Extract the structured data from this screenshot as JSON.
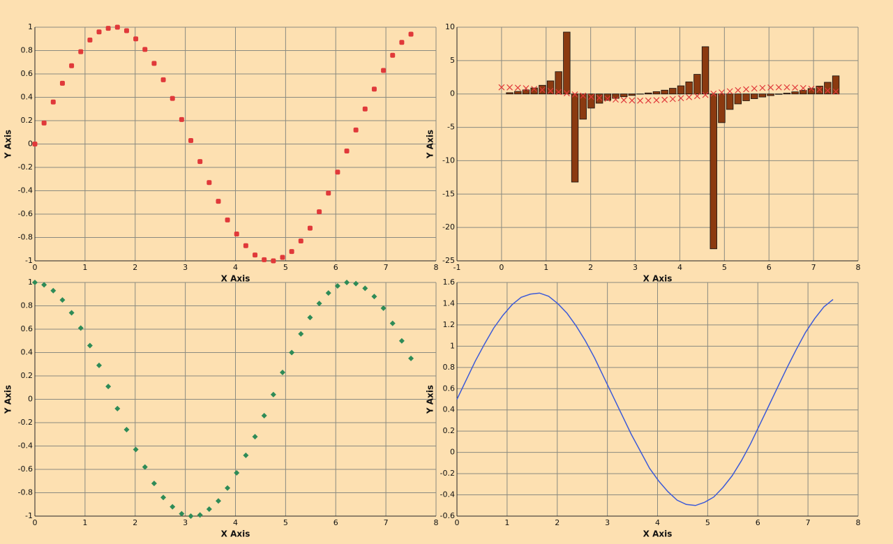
{
  "chart_data": [
    {
      "type": "scatter",
      "xlabel": "X Axis",
      "ylabel": "Y Axis",
      "xlim": [
        0,
        8
      ],
      "xticks": [
        0,
        1,
        2,
        3,
        4,
        5,
        6,
        7,
        8
      ],
      "ylim": [
        -1,
        1
      ],
      "yticks": [
        -1,
        -0.8,
        -0.6,
        -0.4,
        -0.2,
        0,
        0.2,
        0.4,
        0.6,
        0.8,
        1
      ],
      "grid": true,
      "x": [
        0,
        0.183,
        0.366,
        0.549,
        0.732,
        0.915,
        1.098,
        1.28,
        1.463,
        1.646,
        1.829,
        2.012,
        2.195,
        2.378,
        2.561,
        2.744,
        2.927,
        3.11,
        3.293,
        3.476,
        3.659,
        3.841,
        4.024,
        4.207,
        4.39,
        4.573,
        4.756,
        4.939,
        5.122,
        5.305,
        5.488,
        5.671,
        5.854,
        6.037,
        6.22,
        6.402,
        6.585,
        6.768,
        6.951,
        7.134,
        7.317,
        7.5
      ],
      "series": [
        {
          "color": "#e0393a",
          "marker": "square",
          "values": [
            0,
            0.18,
            0.36,
            0.52,
            0.67,
            0.79,
            0.89,
            0.96,
            0.99,
            1.0,
            0.97,
            0.9,
            0.81,
            0.69,
            0.55,
            0.39,
            0.21,
            0.03,
            -0.15,
            -0.33,
            -0.49,
            -0.65,
            -0.77,
            -0.87,
            -0.95,
            -0.99,
            -1.0,
            -0.97,
            -0.92,
            -0.83,
            -0.72,
            -0.58,
            -0.42,
            -0.24,
            -0.06,
            0.12,
            0.3,
            0.47,
            0.63,
            0.76,
            0.87,
            0.94
          ]
        }
      ]
    },
    {
      "type": "bar",
      "xlabel": "X Axis",
      "ylabel": "Y Axis",
      "xlim": [
        -1,
        8
      ],
      "xticks": [
        -1,
        0,
        1,
        2,
        3,
        4,
        5,
        6,
        7,
        8
      ],
      "ylim": [
        -25,
        10
      ],
      "yticks": [
        -25,
        -20,
        -15,
        -10,
        -5,
        0,
        5,
        10
      ],
      "grid": true,
      "x": [
        0,
        0.183,
        0.366,
        0.549,
        0.732,
        0.915,
        1.098,
        1.28,
        1.463,
        1.646,
        1.829,
        2.012,
        2.195,
        2.378,
        2.561,
        2.744,
        2.927,
        3.11,
        3.293,
        3.476,
        3.659,
        3.841,
        4.024,
        4.207,
        4.39,
        4.573,
        4.756,
        4.939,
        5.122,
        5.305,
        5.488,
        5.671,
        5.854,
        6.037,
        6.22,
        6.402,
        6.585,
        6.768,
        6.951,
        7.134,
        7.317,
        7.5
      ],
      "series": [
        {
          "type": "bar",
          "color": "#8b3a10",
          "values": [
            0,
            0.19,
            0.38,
            0.61,
            0.9,
            1.3,
            1.96,
            3.34,
            9.27,
            -13.2,
            -3.78,
            -2.12,
            -1.39,
            -0.96,
            -0.66,
            -0.42,
            -0.22,
            -0.03,
            0.15,
            0.35,
            0.57,
            0.85,
            1.22,
            1.81,
            2.94,
            7.08,
            -23.2,
            -4.3,
            -2.32,
            -1.49,
            -1.02,
            -0.71,
            -0.46,
            -0.25,
            -0.06,
            0.12,
            0.32,
            0.54,
            0.81,
            1.18,
            1.75,
            2.71
          ]
        },
        {
          "type": "scatter",
          "color": "#e0393a",
          "marker": "x",
          "values": [
            1,
            0.98,
            0.93,
            0.85,
            0.74,
            0.61,
            0.46,
            0.29,
            0.11,
            -0.08,
            -0.26,
            -0.43,
            -0.58,
            -0.72,
            -0.84,
            -0.92,
            -0.98,
            -1.0,
            -0.99,
            -0.94,
            -0.87,
            -0.76,
            -0.63,
            -0.48,
            -0.32,
            -0.14,
            0.04,
            0.23,
            0.4,
            0.56,
            0.7,
            0.82,
            0.91,
            0.97,
            1.0,
            0.99,
            0.95,
            0.88,
            0.78,
            0.65,
            0.5,
            0.35
          ]
        }
      ]
    },
    {
      "type": "scatter",
      "xlabel": "X Axis",
      "ylabel": "Y Axis",
      "xlim": [
        0,
        8
      ],
      "xticks": [
        0,
        1,
        2,
        3,
        4,
        5,
        6,
        7,
        8
      ],
      "ylim": [
        -1,
        1
      ],
      "yticks": [
        -1,
        -0.8,
        -0.6,
        -0.4,
        -0.2,
        0,
        0.2,
        0.4,
        0.6,
        0.8,
        1
      ],
      "grid": true,
      "x": [
        0,
        0.183,
        0.366,
        0.549,
        0.732,
        0.915,
        1.098,
        1.28,
        1.463,
        1.646,
        1.829,
        2.012,
        2.195,
        2.378,
        2.561,
        2.744,
        2.927,
        3.11,
        3.293,
        3.476,
        3.659,
        3.841,
        4.024,
        4.207,
        4.39,
        4.573,
        4.756,
        4.939,
        5.122,
        5.305,
        5.488,
        5.671,
        5.854,
        6.037,
        6.22,
        6.402,
        6.585,
        6.768,
        6.951,
        7.134,
        7.317,
        7.5
      ],
      "series": [
        {
          "color": "#2e8b57",
          "marker": "diamond",
          "values": [
            1,
            0.98,
            0.93,
            0.85,
            0.74,
            0.61,
            0.46,
            0.29,
            0.11,
            -0.08,
            -0.26,
            -0.43,
            -0.58,
            -0.72,
            -0.84,
            -0.92,
            -0.98,
            -1.0,
            -0.99,
            -0.94,
            -0.87,
            -0.76,
            -0.63,
            -0.48,
            -0.32,
            -0.14,
            0.04,
            0.23,
            0.4,
            0.56,
            0.7,
            0.82,
            0.91,
            0.97,
            1.0,
            0.99,
            0.95,
            0.88,
            0.78,
            0.65,
            0.5,
            0.35
          ]
        }
      ]
    },
    {
      "type": "line",
      "xlabel": "X Axis",
      "ylabel": "Y Axis",
      "xlim": [
        0,
        8
      ],
      "xticks": [
        0,
        1,
        2,
        3,
        4,
        5,
        6,
        7,
        8
      ],
      "ylim": [
        -0.6,
        1.6
      ],
      "yticks": [
        -0.6,
        -0.4,
        -0.2,
        0,
        0.2,
        0.4,
        0.6,
        0.8,
        1,
        1.2,
        1.4,
        1.6
      ],
      "grid": true,
      "x": [
        0,
        0.183,
        0.366,
        0.549,
        0.732,
        0.915,
        1.098,
        1.28,
        1.463,
        1.646,
        1.829,
        2.012,
        2.195,
        2.378,
        2.561,
        2.744,
        2.927,
        3.11,
        3.293,
        3.476,
        3.659,
        3.841,
        4.024,
        4.207,
        4.39,
        4.573,
        4.756,
        4.939,
        5.122,
        5.305,
        5.488,
        5.671,
        5.854,
        6.037,
        6.22,
        6.402,
        6.585,
        6.768,
        6.951,
        7.134,
        7.317,
        7.5
      ],
      "series": [
        {
          "color": "#3c5ad8",
          "values": [
            0.5,
            0.68,
            0.86,
            1.02,
            1.17,
            1.29,
            1.39,
            1.46,
            1.49,
            1.5,
            1.47,
            1.4,
            1.31,
            1.19,
            1.05,
            0.89,
            0.71,
            0.53,
            0.35,
            0.17,
            0.01,
            -0.15,
            -0.27,
            -0.37,
            -0.45,
            -0.49,
            -0.5,
            -0.47,
            -0.42,
            -0.33,
            -0.22,
            -0.08,
            0.08,
            0.26,
            0.44,
            0.62,
            0.8,
            0.97,
            1.13,
            1.26,
            1.37,
            1.44
          ]
        }
      ]
    }
  ]
}
